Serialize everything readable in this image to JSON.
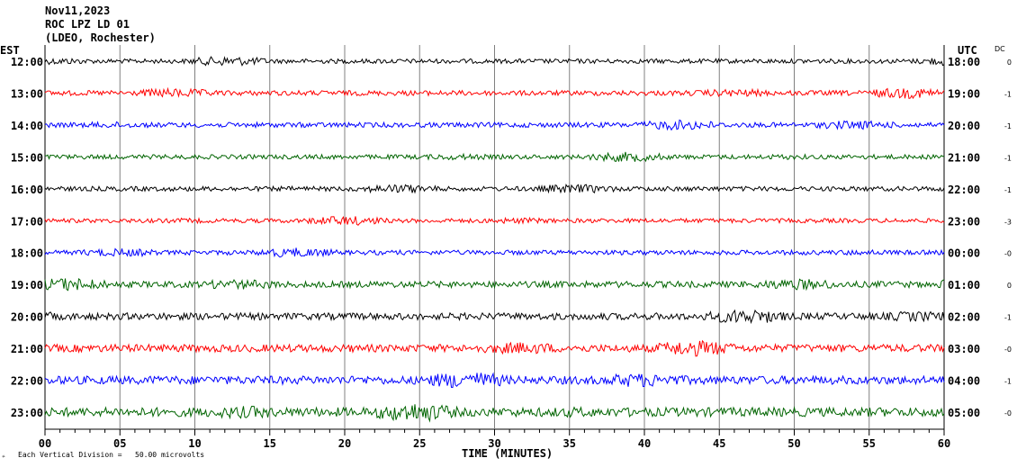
{
  "header": {
    "date": "Nov11,2023",
    "station": "ROC LPZ LD 01",
    "network": "(LDEO, Rochester)"
  },
  "chart_data": {
    "type": "line",
    "title": "Nov11,2023 ROC LPZ LD 01 (LDEO, Rochester)",
    "xlabel": "TIME (MINUTES)",
    "xlim": [
      0,
      60
    ],
    "x_ticks": [
      "00",
      "05",
      "10",
      "15",
      "20",
      "25",
      "30",
      "35",
      "40",
      "45",
      "50",
      "55",
      "60"
    ],
    "left_axis_label": "EST",
    "right_axis_label": "UTC",
    "dc_label": "DC",
    "scale_note": "Each Vertical Division =   50.00 microvolts",
    "grid": true,
    "rows": [
      {
        "est": "12:00",
        "utc": "18:00",
        "dc": "0",
        "color": "#000000",
        "amp": 2.5
      },
      {
        "est": "13:00",
        "utc": "19:00",
        "dc": "-1",
        "color": "#ff0000",
        "amp": 2.8
      },
      {
        "est": "14:00",
        "utc": "20:00",
        "dc": "-1",
        "color": "#0000ff",
        "amp": 2.8
      },
      {
        "est": "15:00",
        "utc": "21:00",
        "dc": "-1",
        "color": "#006400",
        "amp": 2.5
      },
      {
        "est": "16:00",
        "utc": "22:00",
        "dc": "-1",
        "color": "#000000",
        "amp": 2.6
      },
      {
        "est": "17:00",
        "utc": "23:00",
        "dc": "-3",
        "color": "#ff0000",
        "amp": 2.4
      },
      {
        "est": "18:00",
        "utc": "00:00",
        "dc": "-0",
        "color": "#0000ff",
        "amp": 2.6
      },
      {
        "est": "19:00",
        "utc": "01:00",
        "dc": "0",
        "color": "#006400",
        "amp": 3.5
      },
      {
        "est": "20:00",
        "utc": "02:00",
        "dc": "-1",
        "color": "#000000",
        "amp": 3.8
      },
      {
        "est": "21:00",
        "utc": "03:00",
        "dc": "-0",
        "color": "#ff0000",
        "amp": 4.2
      },
      {
        "est": "22:00",
        "utc": "04:00",
        "dc": "-1",
        "color": "#0000ff",
        "amp": 4.6
      },
      {
        "est": "23:00",
        "utc": "05:00",
        "dc": "-0",
        "color": "#006400",
        "amp": 5.0
      }
    ]
  }
}
